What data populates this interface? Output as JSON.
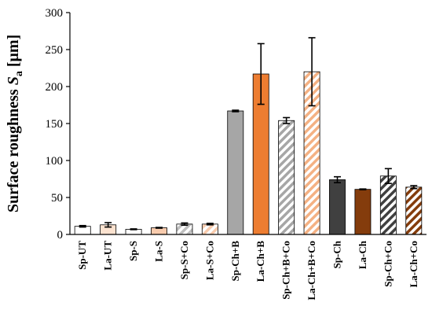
{
  "chart_data": {
    "type": "bar",
    "title": "",
    "xlabel": "",
    "ylabel": {
      "main": "Surface roughness ",
      "symbol": "S",
      "subscript": "a",
      "unit": " [μm]"
    },
    "ylim": [
      0,
      300
    ],
    "yticks": [
      0,
      50,
      100,
      150,
      200,
      250,
      300
    ],
    "grid": false,
    "legend": "none",
    "categories": [
      "Sp-UT",
      "La-UT",
      "Sp-S",
      "La-S",
      "Sp-S+Co",
      "La-S+Co",
      "Sp-Ch+B",
      "La-Ch+B",
      "Sp-Ch+B+Co",
      "La-Ch+B+Co",
      "Sp-Ch",
      "La-Ch",
      "Sp-Ch+Co",
      "La-Ch+Co"
    ],
    "values": [
      11,
      13,
      7,
      9,
      14,
      14,
      167,
      217,
      154,
      220,
      74,
      61,
      79,
      64
    ],
    "errors": [
      1,
      3,
      0.5,
      0.5,
      1.5,
      1,
      1,
      41,
      4,
      46,
      4,
      0.5,
      10,
      2
    ],
    "bar_styles": [
      {
        "fill": "#ffffff",
        "stroke": "#000000",
        "hatch": false
      },
      {
        "fill": "#fbe2cf",
        "stroke": "#000000",
        "hatch": false
      },
      {
        "fill": "#ffffff",
        "stroke": "#000000",
        "hatch": false
      },
      {
        "fill": "#f8cbad",
        "stroke": "#000000",
        "hatch": false
      },
      {
        "fill": "#bfbfbf",
        "stroke": "#000000",
        "hatch": true
      },
      {
        "fill": "#f8cbad",
        "stroke": "#000000",
        "hatch": true
      },
      {
        "fill": "#a6a6a6",
        "stroke": "#000000",
        "hatch": false
      },
      {
        "fill": "#ed7d31",
        "stroke": "#000000",
        "hatch": false
      },
      {
        "fill": "#a6a6a6",
        "stroke": "#000000",
        "hatch": true
      },
      {
        "fill": "#f4b183",
        "stroke": "#000000",
        "hatch": true
      },
      {
        "fill": "#404040",
        "stroke": "#000000",
        "hatch": false
      },
      {
        "fill": "#843c0c",
        "stroke": "#000000",
        "hatch": false
      },
      {
        "fill": "#404040",
        "stroke": "#000000",
        "hatch": true
      },
      {
        "fill": "#843c0c",
        "stroke": "#000000",
        "hatch": true
      }
    ]
  }
}
